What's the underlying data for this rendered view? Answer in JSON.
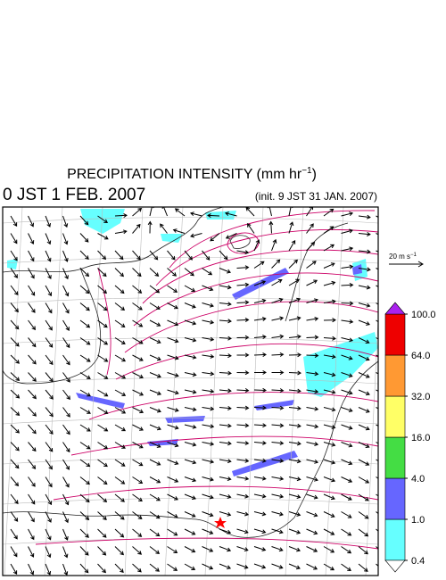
{
  "title": {
    "main": "PRECIPITATION INTENSITY (mm hr",
    "sup": "−1",
    "close": ")"
  },
  "valid_time": "0 JST 1 FEB. 2007",
  "init_time": "(init. 9 JST 31 JAN. 2007)",
  "wind_scale": {
    "label": "20 m s",
    "sup": "−1"
  },
  "colorbar": {
    "levels": [
      {
        "value": 0.4,
        "label": "0.4"
      },
      {
        "value": 1,
        "label": "1.0"
      },
      {
        "value": 4,
        "label": "4.0"
      },
      {
        "value": 16,
        "label": "16.0"
      },
      {
        "value": 32,
        "label": "32.0"
      },
      {
        "value": 64,
        "label": "64.0"
      },
      {
        "value": 100,
        "label": "100.0"
      }
    ],
    "colors": [
      "#66ffff",
      "#6666ff",
      "#44dd44",
      "#ffff66",
      "#ff9933",
      "#ee0000"
    ],
    "under_color": "#ffffff",
    "over_color": "#aa22ee"
  }
}
